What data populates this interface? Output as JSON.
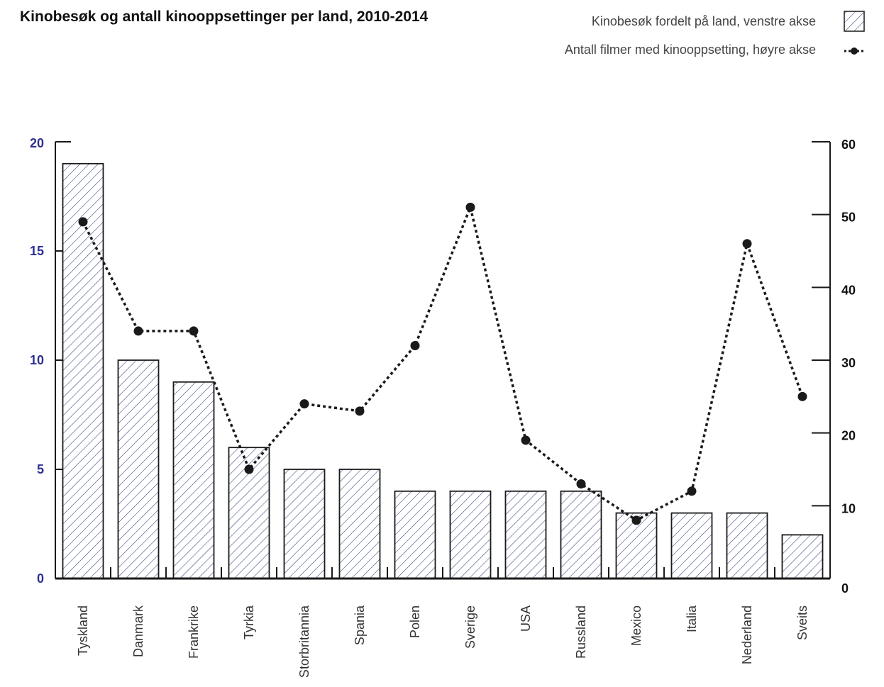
{
  "chart_data": {
    "type": "bar",
    "title": "Kinobesøk og antall kinooppsettinger per land, 2010-2014",
    "categories": [
      "Tyskland",
      "Danmark",
      "Frankrike",
      "Tyrkia",
      "Storbritannia",
      "Spania",
      "Polen",
      "Sverige",
      "USA",
      "Russland",
      "Mexico",
      "Italia",
      "Nederland",
      "Sveits"
    ],
    "series": [
      {
        "name": "Kinobesøk fordelt på land, venstre akse",
        "type": "bar",
        "axis": "left",
        "values": [
          19,
          10,
          9,
          6,
          5,
          5,
          4,
          4,
          4,
          4,
          3,
          3,
          3,
          2
        ]
      },
      {
        "name": "Antall filmer med kinooppsetting, høyre akse",
        "type": "line",
        "axis": "right",
        "values": [
          49,
          34,
          34,
          15,
          24,
          23,
          32,
          51,
          19,
          13,
          8,
          12,
          46,
          25
        ]
      }
    ],
    "y_left": {
      "min": 0,
      "max": 20,
      "ticks": [
        "0",
        "5",
        "10",
        "15",
        "20"
      ],
      "color": "#2e3192"
    },
    "y_right": {
      "min": 0,
      "max": 60,
      "ticks": [
        "0",
        "10",
        "20",
        "30",
        "40",
        "50",
        "60"
      ]
    },
    "grid": false,
    "legend": "top-right",
    "colors": {
      "bar_hatch": "#2e3f7a",
      "line": "#1a1a1a",
      "left_axis_text": "#2e3192"
    }
  }
}
